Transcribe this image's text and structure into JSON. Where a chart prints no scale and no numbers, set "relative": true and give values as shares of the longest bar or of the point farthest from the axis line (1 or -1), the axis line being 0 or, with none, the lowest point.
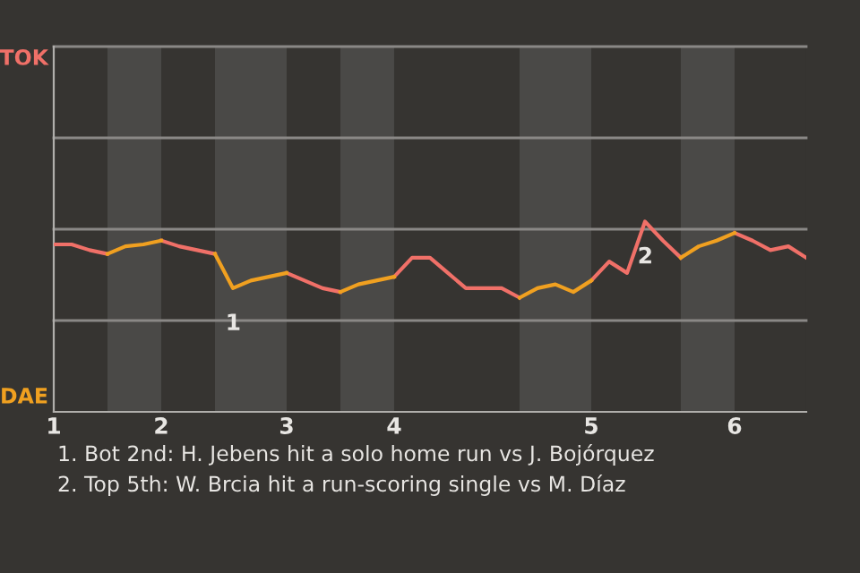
{
  "chart_data": {
    "type": "line",
    "relative": true,
    "categories": [
      "1",
      null,
      null,
      null,
      null,
      null,
      "2",
      null,
      null,
      null,
      null,
      null,
      null,
      "3",
      null,
      null,
      null,
      null,
      null,
      "4",
      null,
      null,
      null,
      null,
      null,
      null,
      null,
      null,
      null,
      null,
      "5",
      null,
      null,
      null,
      null,
      null,
      null,
      null,
      "6",
      null,
      null,
      null,
      null
    ],
    "series": [
      {
        "color": "#f07068",
        "values": [
          0.88,
          0.88,
          0.85,
          0.83,
          null,
          null,
          0.9,
          0.87,
          0.85,
          0.83,
          null,
          null,
          null,
          0.73,
          0.69,
          0.65,
          0.63,
          null,
          null,
          0.71,
          0.81,
          0.81,
          0.73,
          0.65,
          0.65,
          0.65,
          0.6,
          null,
          null,
          null,
          0.69,
          0.79,
          0.73,
          1,
          0.9,
          0.81,
          null,
          null,
          0.94,
          0.9,
          0.85,
          0.87,
          0.81
        ]
      },
      {
        "color": "#f0a020",
        "values": [
          null,
          null,
          null,
          0.83,
          0.87,
          0.88,
          0.9,
          null,
          null,
          0.83,
          0.65,
          0.69,
          0.71,
          0.73,
          null,
          null,
          0.63,
          0.67,
          0.69,
          0.71,
          null,
          null,
          null,
          null,
          null,
          null,
          0.6,
          0.65,
          0.67,
          0.63,
          0.69,
          null,
          null,
          null,
          null,
          0.81,
          0.87,
          0.9,
          0.94,
          null,
          null,
          null,
          null
        ]
      }
    ],
    "ref_lines": [
      {
        "axis": "y",
        "value": 0.48,
        "color": "#8a8886"
      },
      {
        "axis": "y",
        "value": 0.96,
        "color": "#8a8886"
      },
      {
        "axis": "y",
        "value": 1.44,
        "color": "#8a8886"
      },
      {
        "axis": "y",
        "value": 1.92,
        "color": "#8a8886"
      }
    ],
    "marker": "none",
    "line_style": "solid",
    "annotations": [
      "TOK",
      "DAE",
      {
        "text": "1",
        "y": 0.65
      },
      {
        "text": "2",
        "y": 1
      },
      "1. Bot 2nd: H. Jebens hit a solo home run vs J. Bojórquez",
      "2. Top 5th: W. Brcia hit a run-scoring single vs M. Díaz"
    ]
  }
}
